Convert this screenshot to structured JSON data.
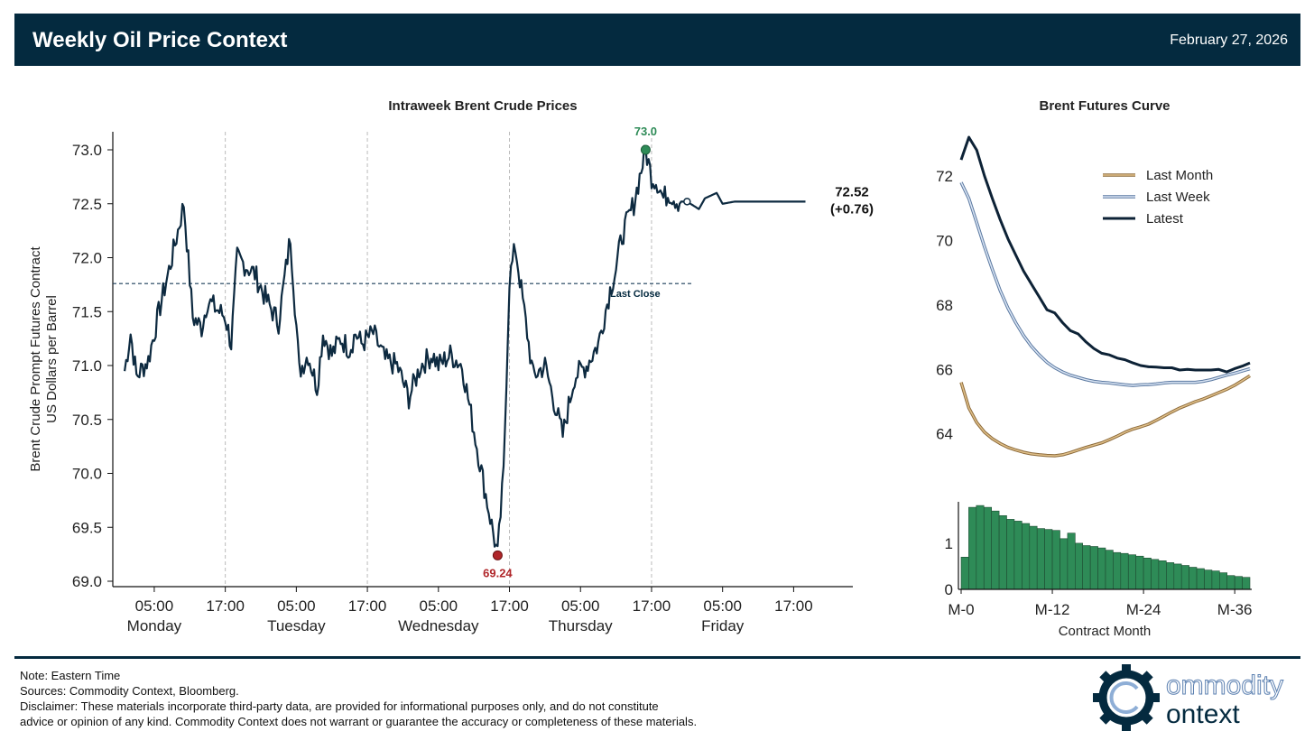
{
  "header": {
    "title": "Weekly Oil Price Context",
    "date": "February 27, 2026"
  },
  "colors": {
    "navy": "#042a3f",
    "green": "#2e8b57",
    "red": "#b0262a",
    "tan": "#c8a46a",
    "lightblue": "#8eaed6"
  },
  "chart_data": [
    {
      "type": "line",
      "title": "Intraweek Brent Crude Prices",
      "ylabel": "Brent Crude Prompt Futures Contract\nUS Dollars per Barrel",
      "ylabel_lines": [
        "Brent Crude Prompt Futures Contract",
        "US Dollars per Barrel"
      ],
      "ylim": [
        69.0,
        73.0
      ],
      "yticks": [
        "73.0",
        "72.5",
        "72.0",
        "71.5",
        "71.0",
        "70.5",
        "70.0",
        "69.5",
        "69.0"
      ],
      "xticks": [
        {
          "time": "05:00",
          "day": "Monday"
        },
        {
          "time": "17:00",
          "day": ""
        },
        {
          "time": "05:00",
          "day": "Tuesday"
        },
        {
          "time": "17:00",
          "day": ""
        },
        {
          "time": "05:00",
          "day": "Wednesday"
        },
        {
          "time": "17:00",
          "day": ""
        },
        {
          "time": "05:00",
          "day": "Thursday"
        },
        {
          "time": "17:00",
          "day": ""
        },
        {
          "time": "05:00",
          "day": "Friday"
        },
        {
          "time": "17:00",
          "day": ""
        }
      ],
      "x_unit": "hours since Monday 00:00 ET",
      "xlim": [
        -2,
        123
      ],
      "series": [
        {
          "name": "Brent",
          "x": [
            0,
            1,
            2,
            4,
            6,
            8,
            10,
            11.5,
            13,
            14,
            15,
            16,
            17,
            18,
            19,
            22,
            24,
            26,
            28,
            29.5,
            31,
            32.5,
            33.5,
            35,
            36.5,
            38,
            39,
            40,
            42,
            44,
            46,
            48,
            50,
            52,
            53,
            55,
            57,
            59,
            61,
            63,
            64,
            65,
            66,
            69,
            71,
            74,
            76,
            78,
            79,
            80,
            81,
            82,
            83,
            84,
            86,
            88,
            89,
            90,
            91,
            92,
            93.5,
            95,
            97,
            98,
            100,
            101,
            103,
            104,
            105,
            106,
            107,
            108,
            109,
            110,
            111,
            112,
            113.5,
            115
          ],
          "values": [
            70.95,
            71.3,
            70.9,
            71.05,
            71.55,
            72.0,
            72.5,
            71.45,
            71.35,
            71.6,
            71.55,
            71.5,
            71.45,
            71.2,
            72.0,
            71.85,
            71.6,
            71.4,
            72.2,
            70.95,
            71.1,
            70.8,
            71.3,
            71.1,
            71.25,
            71.15,
            71.3,
            71.2,
            71.3,
            71.05,
            71.0,
            70.7,
            71.0,
            71.1,
            71.0,
            71.1,
            71.0,
            70.4,
            69.8,
            69.24,
            70.0,
            71.8,
            72.1,
            70.9,
            71.0,
            70.35,
            70.9,
            71.0,
            71.1,
            71.2,
            71.45,
            71.7,
            71.9,
            72.2,
            72.5,
            73.0,
            72.75,
            72.7,
            72.55,
            72.6,
            72.52,
            72.52,
            72.45,
            72.55,
            72.6,
            72.5,
            72.52,
            72.52,
            72.52,
            72.52,
            72.52,
            72.52,
            72.52,
            72.52,
            72.52,
            72.52,
            72.52,
            72.52
          ]
        }
      ],
      "reference_line": {
        "value": 71.76,
        "label": "Last Close"
      },
      "annotations": {
        "high": {
          "x": 88,
          "value": 73.0,
          "label": "73.0"
        },
        "low": {
          "x": 63,
          "value": 69.24,
          "label": "69.24"
        },
        "last": {
          "x": 95,
          "value": 72.52,
          "label": "72.52",
          "change": "(+0.76)"
        }
      }
    },
    {
      "type": "line",
      "title": "Brent Futures Curve",
      "ylim": [
        62.9,
        73.4
      ],
      "yticks": [
        "72",
        "70",
        "68",
        "66",
        "64"
      ],
      "legend": {
        "placement": "top-right",
        "entries": [
          "Last Month",
          "Last Week",
          "Latest"
        ]
      },
      "series": [
        {
          "name": "Last Month",
          "x": [
            0,
            1,
            2,
            3,
            4,
            5,
            6,
            7,
            8,
            9,
            10,
            11,
            12,
            13,
            14,
            15,
            16,
            17,
            18,
            19,
            20,
            21,
            22,
            23,
            24,
            25,
            26,
            27,
            28,
            29,
            30,
            31,
            32,
            33,
            34,
            35,
            36,
            37
          ],
          "values": [
            65.6,
            64.8,
            64.35,
            64.05,
            63.85,
            63.7,
            63.58,
            63.5,
            63.43,
            63.38,
            63.35,
            63.33,
            63.32,
            63.35,
            63.42,
            63.5,
            63.58,
            63.65,
            63.72,
            63.82,
            63.93,
            64.05,
            64.15,
            64.22,
            64.3,
            64.42,
            64.55,
            64.68,
            64.8,
            64.9,
            65.0,
            65.08,
            65.18,
            65.28,
            65.38,
            65.5,
            65.65,
            65.8
          ]
        },
        {
          "name": "Last Week",
          "x": [
            0,
            1,
            2,
            3,
            4,
            5,
            6,
            7,
            8,
            9,
            10,
            11,
            12,
            13,
            14,
            15,
            16,
            17,
            18,
            19,
            20,
            21,
            22,
            23,
            24,
            25,
            26,
            27,
            28,
            29,
            30,
            31,
            32,
            33,
            34,
            35,
            36,
            37
          ],
          "values": [
            71.8,
            71.3,
            70.55,
            69.8,
            69.1,
            68.45,
            67.9,
            67.45,
            67.05,
            66.72,
            66.45,
            66.22,
            66.05,
            65.92,
            65.82,
            65.75,
            65.68,
            65.63,
            65.6,
            65.58,
            65.55,
            65.52,
            65.5,
            65.52,
            65.53,
            65.55,
            65.58,
            65.6,
            65.6,
            65.6,
            65.6,
            65.63,
            65.68,
            65.75,
            65.82,
            65.88,
            65.95,
            66.02
          ]
        },
        {
          "name": "Latest",
          "x": [
            0,
            1,
            2,
            3,
            4,
            5,
            6,
            7,
            8,
            9,
            10,
            11,
            12,
            13,
            14,
            15,
            16,
            17,
            18,
            19,
            20,
            21,
            22,
            23,
            24,
            25,
            26,
            27,
            28,
            29,
            30,
            31,
            32,
            33,
            34,
            35,
            36,
            37
          ],
          "values": [
            72.5,
            73.2,
            72.8,
            72.0,
            71.3,
            70.65,
            70.05,
            69.55,
            69.05,
            68.65,
            68.25,
            67.85,
            67.75,
            67.45,
            67.2,
            67.1,
            66.85,
            66.65,
            66.5,
            66.45,
            66.35,
            66.3,
            66.2,
            66.12,
            66.08,
            66.07,
            66.05,
            66.05,
            65.98,
            66.0,
            65.98,
            65.98,
            65.98,
            66.0,
            65.92,
            66.02,
            66.1,
            66.2
          ]
        }
      ]
    },
    {
      "type": "bar",
      "xlabel": "Contract Month",
      "ylim": [
        0,
        1.9
      ],
      "yticks": [
        "1",
        "0"
      ],
      "xticks": [
        "M-0",
        "M-12",
        "M-24",
        "M-36"
      ],
      "categories": [
        "M-0",
        "M-1",
        "M-2",
        "M-3",
        "M-4",
        "M-5",
        "M-6",
        "M-7",
        "M-8",
        "M-9",
        "M-10",
        "M-11",
        "M-12",
        "M-13",
        "M-14",
        "M-15",
        "M-16",
        "M-17",
        "M-18",
        "M-19",
        "M-20",
        "M-21",
        "M-22",
        "M-23",
        "M-24",
        "M-25",
        "M-26",
        "M-27",
        "M-28",
        "M-29",
        "M-30",
        "M-31",
        "M-32",
        "M-33",
        "M-34",
        "M-35",
        "M-36",
        "M-37"
      ],
      "values": [
        0.7,
        1.78,
        1.82,
        1.78,
        1.7,
        1.6,
        1.52,
        1.48,
        1.43,
        1.37,
        1.32,
        1.3,
        1.28,
        1.1,
        1.22,
        1.0,
        0.95,
        0.93,
        0.9,
        0.85,
        0.8,
        0.78,
        0.75,
        0.72,
        0.68,
        0.65,
        0.62,
        0.58,
        0.55,
        0.52,
        0.48,
        0.45,
        0.42,
        0.4,
        0.36,
        0.3,
        0.28,
        0.26
      ]
    }
  ],
  "footer": {
    "note": "Note: Eastern Time",
    "sources": "Sources: Commodity Context, Bloomberg.",
    "disclaimer1": "Disclaimer: These materials incorporate third-party data, are provided for informational purposes only, and do not constitute",
    "disclaimer2": "advice or opinion of any kind. Commodity Context does not warrant or guarantee the accuracy or completeness of these materials."
  },
  "logo": {
    "line1": "ommodity",
    "line2": "ontext"
  }
}
